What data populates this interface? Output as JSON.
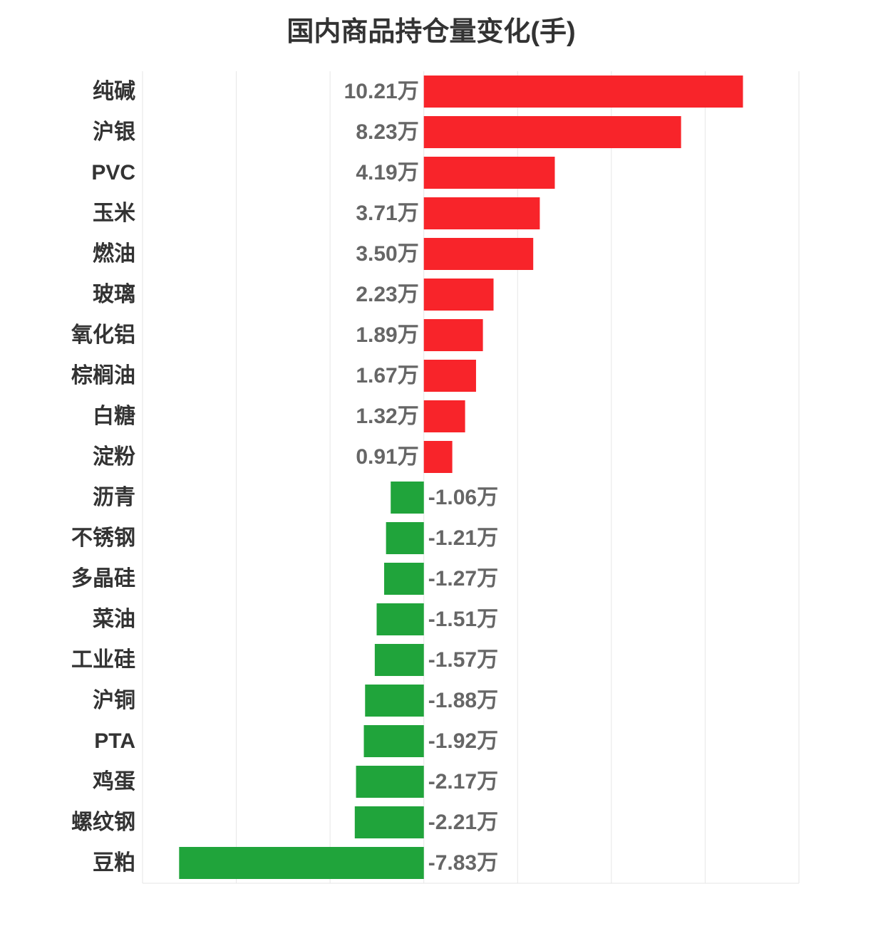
{
  "chart_data": {
    "type": "bar",
    "orientation": "horizontal",
    "title": "国内商品持仓量变化(手)",
    "categories": [
      "纯碱",
      "沪银",
      "PVC",
      "玉米",
      "燃油",
      "玻璃",
      "氧化铝",
      "棕榈油",
      "白糖",
      "淀粉",
      "沥青",
      "不锈钢",
      "多晶硅",
      "菜油",
      "工业硅",
      "沪铜",
      "PTA",
      "鸡蛋",
      "螺纹钢",
      "豆粕"
    ],
    "values": [
      10.21,
      8.23,
      4.19,
      3.71,
      3.5,
      2.23,
      1.89,
      1.67,
      1.32,
      0.91,
      -1.06,
      -1.21,
      -1.27,
      -1.51,
      -1.57,
      -1.88,
      -1.92,
      -2.17,
      -2.21,
      -7.83
    ],
    "data_labels": [
      "10.21万",
      "8.23万",
      "4.19万",
      "3.71万",
      "3.50万",
      "2.23万",
      "1.89万",
      "1.67万",
      "1.32万",
      "0.91万",
      "-1.06万",
      "-1.21万",
      "-1.27万",
      "-1.51万",
      "-1.57万",
      "-1.88万",
      "-1.92万",
      "-2.17万",
      "-2.21万",
      "-7.83万"
    ],
    "xlim": [
      -9,
      12
    ],
    "x_grid_step": 3,
    "grid": true,
    "legend": "none",
    "colors": {
      "positive": "#f8242a",
      "negative": "#20a43b"
    }
  }
}
